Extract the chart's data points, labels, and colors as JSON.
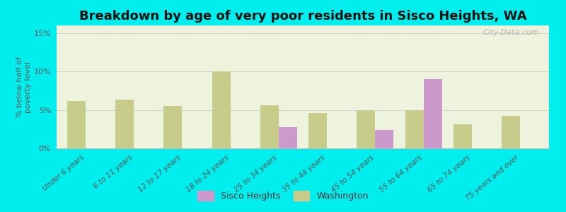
{
  "title": "Breakdown by age of very poor residents in Sisco Heights, WA",
  "ylabel": "% below half of\npoverty level",
  "categories": [
    "Under 6 years",
    "6 to 11 years",
    "12 to 17 years",
    "18 to 24 years",
    "25 to 34 years",
    "35 to 44 years",
    "45 to 54 years",
    "55 to 64 years",
    "65 to 74 years",
    "75 years and over"
  ],
  "sisco_heights": [
    0,
    0,
    0,
    0,
    2.8,
    0,
    2.4,
    9.0,
    0,
    0
  ],
  "washington": [
    6.2,
    6.3,
    5.5,
    10.0,
    5.6,
    4.6,
    5.0,
    5.0,
    3.1,
    4.2
  ],
  "sisco_color": "#cc99cc",
  "washington_color": "#c8cc8a",
  "background_color": "#00eeee",
  "plot_bg_color": "#dde8c0",
  "ylim": [
    0,
    16
  ],
  "yticks": [
    0,
    5,
    10,
    15
  ],
  "ytick_labels": [
    "0%",
    "5%",
    "10%",
    "15%"
  ],
  "title_fontsize": 13,
  "watermark": "City-Data.com"
}
